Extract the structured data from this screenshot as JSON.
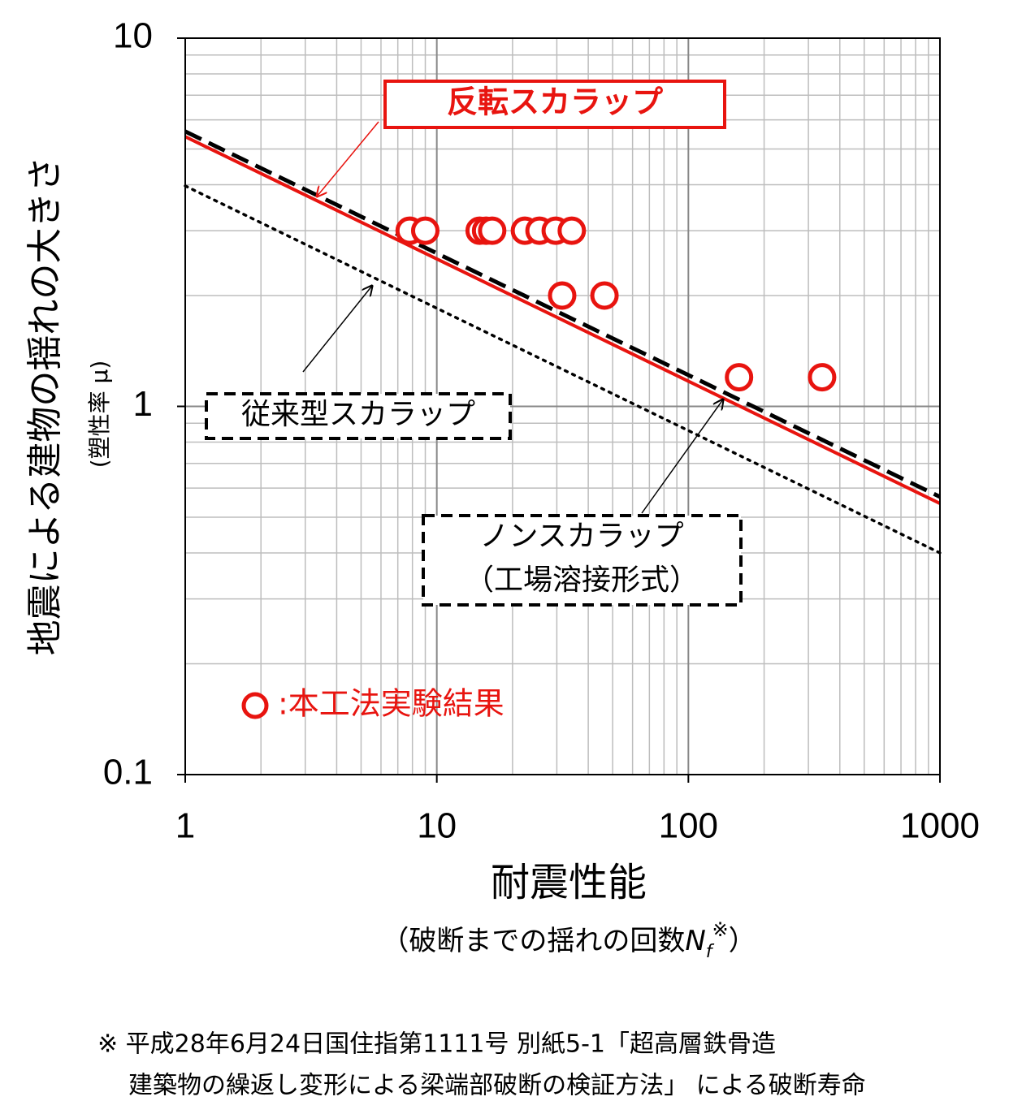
{
  "chart_data": {
    "type": "line",
    "y_label": "地震による建物の揺れの大きさ",
    "y_label_note": "(塑性率 μ)",
    "x_label": "耐震性能",
    "x_label_note": [
      "（破断までの揺れの回数",
      "N",
      "f",
      "※",
      "）"
    ],
    "xscale": "log",
    "yscale": "log",
    "xlim": [
      1,
      1000
    ],
    "ylim": [
      0.1,
      10
    ],
    "xticks": [
      1,
      10,
      100,
      1000
    ],
    "yticks": [
      0.1,
      1,
      10
    ],
    "x_minor_ticks": [
      2,
      3,
      4,
      5,
      6,
      7,
      8,
      9,
      20,
      30,
      40,
      50,
      60,
      70,
      80,
      90,
      200,
      300,
      400,
      500,
      600,
      700,
      800,
      900
    ],
    "y_minor_ticks": [
      0.2,
      0.3,
      0.4,
      0.5,
      0.6,
      0.7,
      0.8,
      0.9,
      2,
      3,
      4,
      5,
      6,
      7,
      8,
      9
    ],
    "grid": true,
    "legend": "lower left",
    "series": [
      {
        "name": "反転スカラップ",
        "type": "line",
        "linestyle": "solid",
        "color": "#e8140f",
        "x": [
          1,
          1000
        ],
        "values": [
          5.4,
          0.545
        ]
      },
      {
        "name": "従来型スカラップ",
        "type": "line",
        "linestyle": "dashed",
        "color": "#000000",
        "x": [
          1,
          1000
        ],
        "values": [
          5.58,
          0.568
        ]
      },
      {
        "name": "ノンスカラップ",
        "note": "（工場溶接形式）",
        "type": "line",
        "linestyle": "dotted",
        "color": "#000000",
        "x": [
          1,
          1000
        ],
        "values": [
          3.97,
          0.4
        ]
      },
      {
        "name": ":本工法実験結果",
        "type": "scatter",
        "color": "#e8140f",
        "x": [
          7.8,
          9.0,
          14.8,
          15.7,
          16.6,
          22.4,
          25.6,
          29.7,
          34.4,
          31.5,
          46.4,
          159,
          340
        ],
        "values": [
          3,
          3,
          3,
          3,
          3,
          3,
          3,
          3,
          3,
          2,
          2,
          1.2,
          1.2
        ]
      }
    ],
    "footnote": [
      "※ 平成28年6月24日国住指第1111号 別紙5-1「超高層鉄骨造",
      "建築物の繰返し変形による梁端部破断の検証方法」 による破断寿命"
    ]
  }
}
